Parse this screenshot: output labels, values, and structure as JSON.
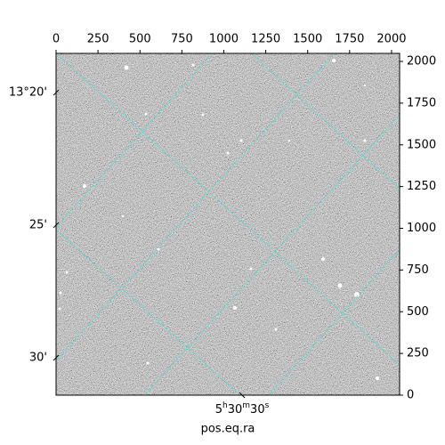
{
  "chart_data": {
    "type": "image",
    "xlabel": "pos.eq.ra",
    "xlim": [
      0,
      2048
    ],
    "ylim": [
      0,
      2048
    ],
    "xticks": [
      0,
      250,
      500,
      750,
      1000,
      1250,
      1500,
      1750,
      2000
    ],
    "yticks": [
      0,
      250,
      500,
      750,
      1000,
      1250,
      1500,
      1750,
      2000
    ],
    "dec_ticks": [
      {
        "value": 1813,
        "label": "13°20'"
      },
      {
        "value": 1019,
        "label": "25'"
      },
      {
        "value": 224,
        "label": "30'"
      }
    ],
    "ra_ticks": [
      {
        "value": 1109,
        "label": "5h30m30s"
      }
    ],
    "grid_color": "#40e0d0"
  }
}
